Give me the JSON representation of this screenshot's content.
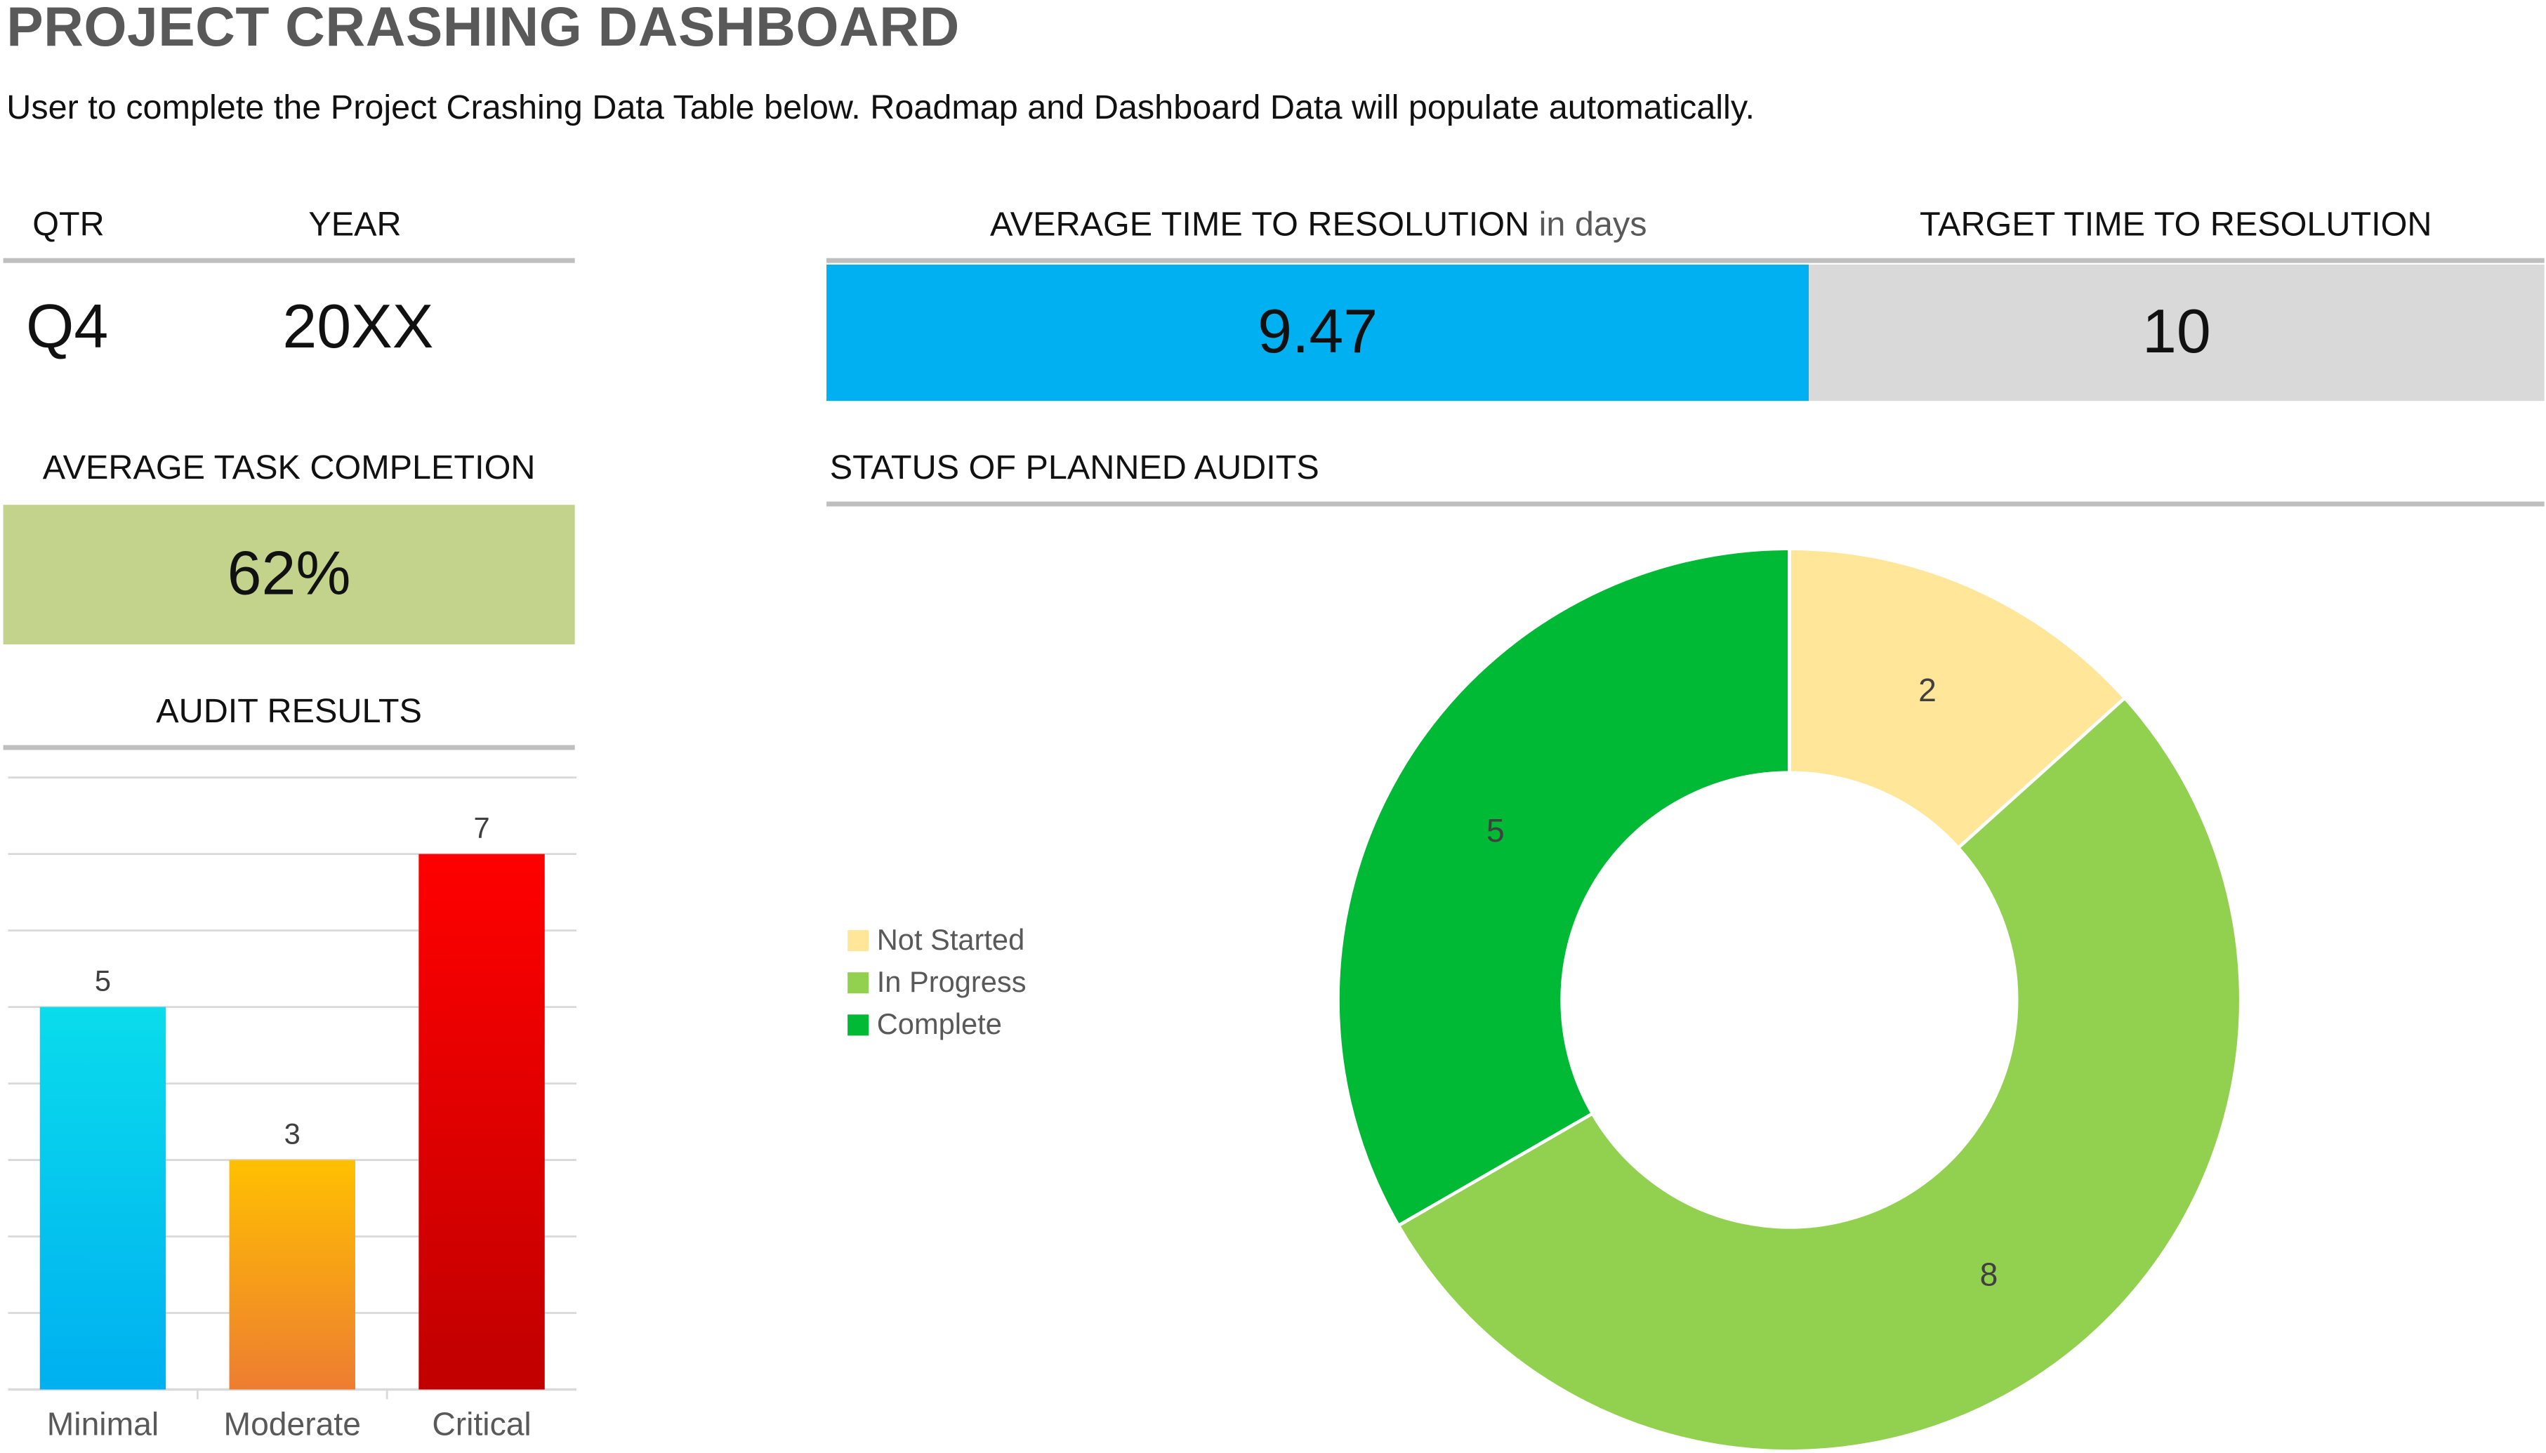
{
  "header": {
    "title": "PROJECT CRASHING DASHBOARD",
    "subtitle": "User to complete the Project Crashing Data Table below.  Roadmap and Dashboard Data will populate automatically."
  },
  "period": {
    "qtr_label": "QTR",
    "year_label": "YEAR",
    "qtr_value": "Q4",
    "year_value": "20XX"
  },
  "resolution": {
    "avg_label": "AVERAGE TIME TO RESOLUTION",
    "avg_unit": "in days",
    "avg_value": "9.47",
    "target_label": "TARGET TIME TO RESOLUTION",
    "target_value": "10",
    "avg_color": "#00b0f0",
    "target_color": "#d9d9d9"
  },
  "task_completion": {
    "label": "AVERAGE TASK COMPLETION",
    "value": "62%",
    "color": "#c4d38b"
  },
  "audit_results": {
    "label": "AUDIT RESULTS"
  },
  "planned_audits": {
    "label": "STATUS OF PLANNED AUDITS"
  },
  "chart_data": [
    {
      "type": "bar",
      "categories": [
        "Minimal",
        "Moderate",
        "Critical"
      ],
      "values": [
        5,
        3,
        7
      ],
      "ylim": [
        0,
        8
      ],
      "grid": true,
      "colors": [
        [
          "#0adcec",
          "#00b0f0"
        ],
        [
          "#ffc000",
          "#ed7d31"
        ],
        [
          "#ff0000",
          "#c00000"
        ]
      ]
    },
    {
      "type": "pie",
      "variant": "doughnut",
      "labels": [
        "Not Started",
        "In Progress",
        "Complete"
      ],
      "values": [
        2,
        8,
        5
      ],
      "colors": [
        "#ffe699",
        "#92d050",
        "#00b935"
      ],
      "legend": "left"
    }
  ]
}
